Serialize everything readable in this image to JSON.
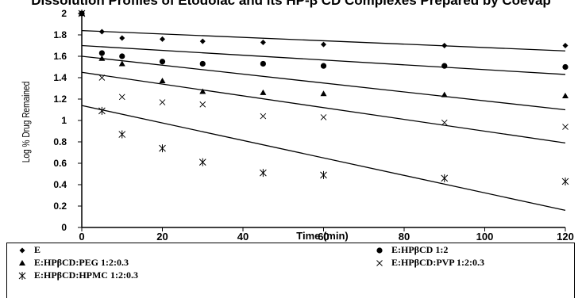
{
  "chart_data": {
    "type": "scatter",
    "title": "Dissolution Profiles of Etodolac and its HP-β CD Complexes Prepared by Coevap",
    "xlabel": "Time (min)",
    "ylabel": "Log % Drug Remained",
    "xlim": [
      0,
      120
    ],
    "ylim": [
      0,
      2
    ],
    "xticks": [
      "0",
      "20",
      "40",
      "60",
      "80",
      "100",
      "120"
    ],
    "yticks": [
      "0",
      "0.2",
      "0.4",
      "0.6",
      "0.8",
      "1",
      "1.2",
      "1.4",
      "1.6",
      "1.8",
      "2"
    ],
    "legend_position": "bottom",
    "grid": false,
    "series": [
      {
        "name": "E",
        "marker": "diamond",
        "x": [
          0,
          5,
          10,
          20,
          30,
          45,
          60,
          90,
          120
        ],
        "y": [
          2.0,
          1.83,
          1.77,
          1.76,
          1.74,
          1.73,
          1.71,
          1.7,
          1.7
        ],
        "trend": [
          1.84,
          1.65
        ]
      },
      {
        "name": "E:HPβCD  1:2",
        "marker": "circle",
        "x": [
          0,
          5,
          10,
          20,
          30,
          45,
          60,
          90,
          120
        ],
        "y": [
          2.0,
          1.63,
          1.6,
          1.55,
          1.53,
          1.53,
          1.51,
          1.51,
          1.5
        ],
        "trend": [
          1.7,
          1.43
        ]
      },
      {
        "name": "E:HPβCD:PEG  1:2:0.3",
        "marker": "triangle",
        "x": [
          0,
          5,
          10,
          20,
          30,
          45,
          60,
          90,
          120
        ],
        "y": [
          2.0,
          1.58,
          1.53,
          1.37,
          1.27,
          1.26,
          1.25,
          1.24,
          1.23
        ],
        "trend": [
          1.6,
          1.1
        ]
      },
      {
        "name": "E:HPβCD:PVP  1:2:0.3",
        "marker": "x",
        "x": [
          0,
          5,
          10,
          20,
          30,
          45,
          60,
          90,
          120
        ],
        "y": [
          2.0,
          1.4,
          1.22,
          1.17,
          1.15,
          1.04,
          1.03,
          0.98,
          0.94
        ],
        "trend": [
          1.45,
          0.79
        ]
      },
      {
        "name": "E:HPβCD:HPMC  1:2:0.3",
        "marker": "asterisk",
        "x": [
          0,
          5,
          10,
          20,
          30,
          45,
          60,
          90,
          120
        ],
        "y": [
          2.0,
          1.09,
          0.87,
          0.74,
          0.61,
          0.51,
          0.49,
          0.46,
          0.43
        ],
        "trend": [
          1.14,
          0.16
        ]
      }
    ]
  }
}
